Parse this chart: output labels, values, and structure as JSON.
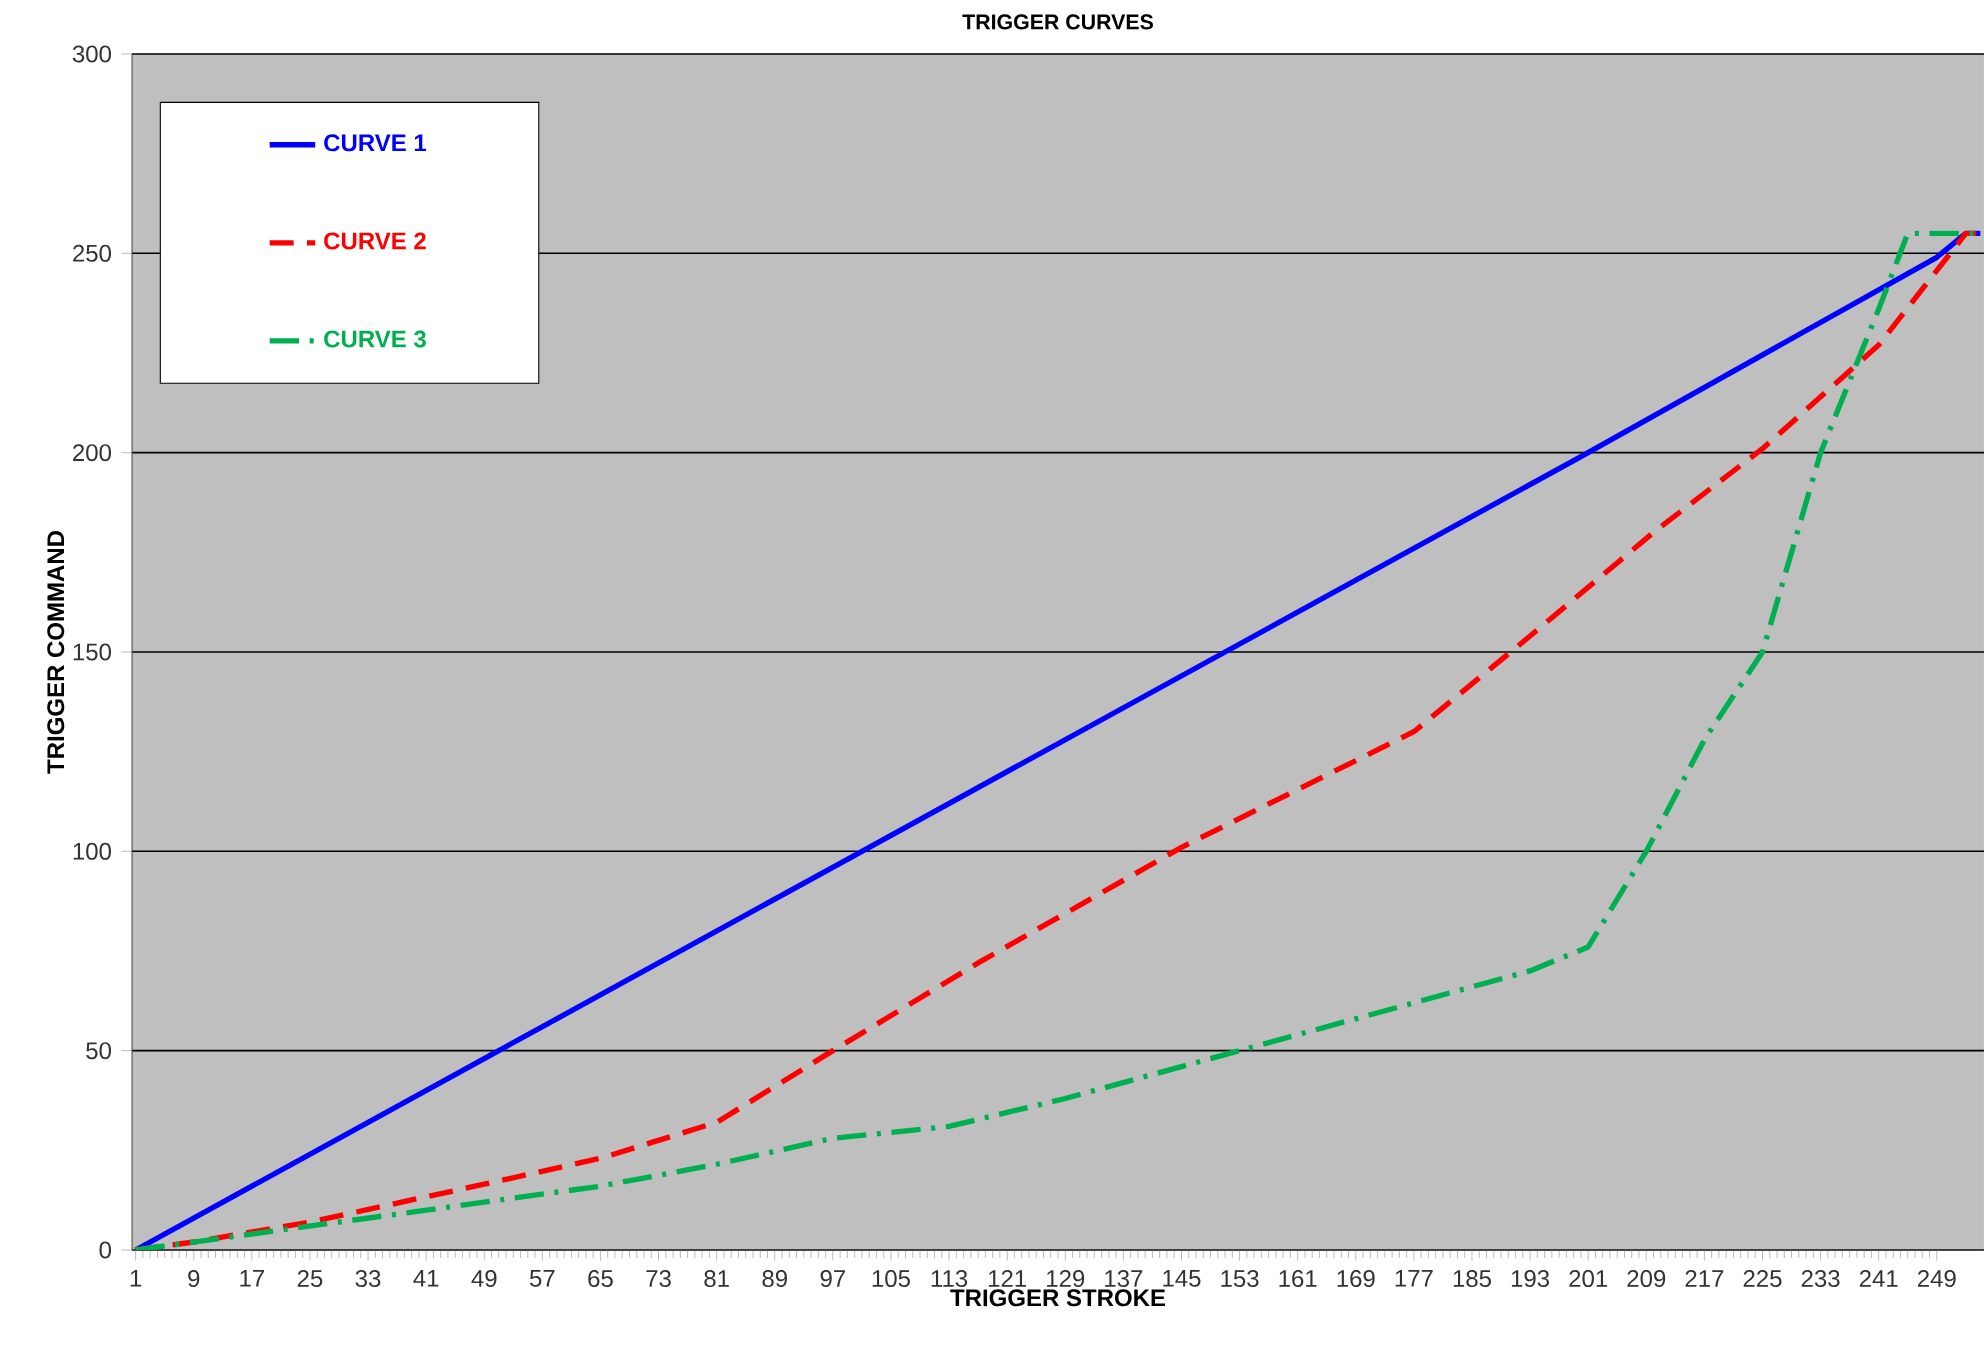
{
  "chart_data": {
    "type": "line",
    "title": "TRIGGER CURVES",
    "xlabel": "TRIGGER STROKE",
    "ylabel": "TRIGGER COMMAND",
    "xlim": [
      0.5,
      255.5
    ],
    "xticks": [
      1,
      9,
      17,
      25,
      33,
      41,
      49,
      57,
      65,
      73,
      81,
      89,
      97,
      105,
      113,
      121,
      129,
      137,
      145,
      153,
      161,
      169,
      177,
      185,
      193,
      201,
      209,
      217,
      225,
      233,
      241,
      249
    ],
    "ylim": [
      0,
      300
    ],
    "yticks": [
      0,
      50,
      100,
      150,
      200,
      250,
      300
    ],
    "grid": "y",
    "legend": "top left",
    "marker": "none",
    "series": [
      {
        "name": "CURVE 1",
        "color": "#0000ff",
        "line_style": "solid",
        "x": [
          1,
          50,
          100,
          150,
          200,
          249,
          253,
          255
        ],
        "values": [
          0,
          49,
          99,
          149,
          199,
          249,
          255,
          255
        ]
      },
      {
        "name": "CURVE 2",
        "color": "#ff0000",
        "line_style": "dashed",
        "x": [
          1,
          9,
          25,
          49,
          65,
          81,
          97,
          117,
          145,
          177,
          193,
          210,
          225,
          241,
          253,
          255
        ],
        "values": [
          0,
          2,
          7,
          16.5,
          23,
          32,
          50,
          72,
          101,
          130,
          154,
          180,
          201,
          227,
          255,
          255
        ]
      },
      {
        "name": "CURVE 3",
        "color": "#00b050",
        "line_style": "dashdot",
        "x": [
          1,
          17,
          33,
          49,
          65,
          81,
          97,
          113,
          129,
          153,
          177,
          193,
          201,
          209,
          217,
          225,
          233,
          241,
          245,
          255
        ],
        "values": [
          0,
          4,
          8,
          12,
          16,
          21.5,
          28,
          31,
          38,
          50,
          62,
          70,
          76,
          100,
          128,
          150,
          200,
          236,
          255,
          255
        ]
      }
    ]
  }
}
